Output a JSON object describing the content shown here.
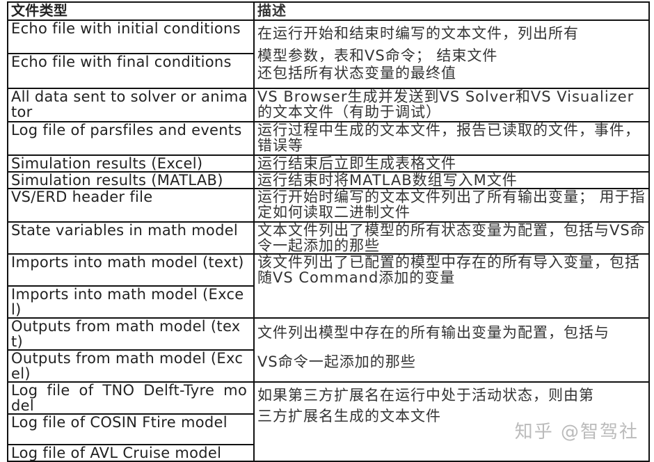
{
  "table": {
    "headers": [
      "文件类型",
      "描述"
    ],
    "file_types": [
      "Echo file with initial  conditions",
      "Echo file with final  conditions",
      "All data sent to solver or  animator",
      "Log file of parsfiles and  events",
      "Simulation results (Excel)",
      "Simulation results (MATLAB)",
      "VS/ERD header file",
      "State variables in math model",
      "Imports into math model (text)",
      "Imports into math model  (Excel)",
      "Outputs from math model (text)",
      "Outputs from math model (Excel)",
      "Log  file  of  TNO  Delft-Tyre model",
      "Log file of COSIN Ftire model",
      "Log file of AVL Cruise model"
    ],
    "descriptions": {
      "echo": [
        "在运行开始和结束时编写的文本文件，列出所有",
        "模型参数，表和VS命令； 结束文件",
        "还包括所有状态变量的最终值"
      ],
      "all_data": "VS Browser生成并发送到VS Solver和VS Visualizer的文本文件（有助于调试）",
      "log_parsfiles": "运行过程中生成的文本文件，报告已读取的文件，事件，错误等",
      "excel": "运行结束后立即生成表格文件",
      "matlab": "运行结束时将MATLAB数组写入M文件",
      "erd": "运行开始时编写的文本文件列出了所有输出变量； 用于指定如何读取二进制文件",
      "state": "文本文件列出了模型的所有状态变量为配置，包括与VS命令一起添加的那些",
      "imports": "该文件列出了已配置的模型中存在的所有导入变量，包括随VS Command添加的变量",
      "outputs": [
        "文件列出模型中存在的所有输出变量为配置，包括与",
        "VS命令一起添加的那些"
      ],
      "third_party": [
        "如果第三方扩展名在运行中处于活动状态，则由第",
        "三方扩展名生成的文本文件"
      ]
    }
  },
  "watermark": "知乎 @智驾社"
}
